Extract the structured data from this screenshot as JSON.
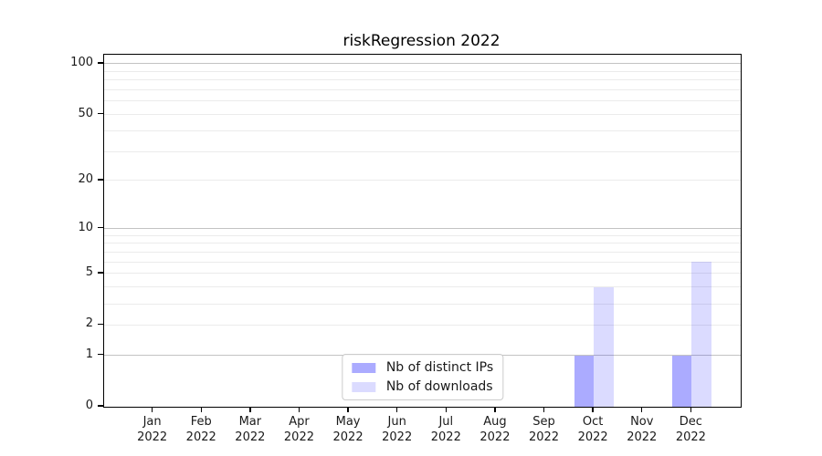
{
  "chart_data": {
    "type": "bar",
    "title": "riskRegression 2022",
    "categories": [
      "Jan",
      "Feb",
      "Mar",
      "Apr",
      "May",
      "Jun",
      "Jul",
      "Aug",
      "Sep",
      "Oct",
      "Nov",
      "Dec"
    ],
    "x_tick_line2": "2022",
    "series": [
      {
        "name": "Nb of distinct IPs",
        "color": "rgba(0,0,255,0.33)",
        "values": [
          0,
          0,
          0,
          0,
          0,
          0,
          0,
          0,
          0,
          1,
          0,
          1
        ]
      },
      {
        "name": "Nb of downloads",
        "color": "rgba(0,0,255,0.14)",
        "values": [
          0,
          0,
          0,
          0,
          0,
          0,
          0,
          0,
          0,
          4,
          0,
          6
        ]
      }
    ],
    "yscale": "log1p",
    "ylim": [
      0,
      113
    ],
    "yticks": [
      0,
      1,
      2,
      5,
      10,
      20,
      50,
      100
    ],
    "major_gridlines": [
      1,
      10,
      100
    ],
    "minor_gridlines": [
      2,
      3,
      4,
      5,
      6,
      7,
      8,
      9,
      20,
      30,
      40,
      50,
      60,
      70,
      80,
      90
    ],
    "grid": true,
    "legend_position": "lower center",
    "colors": {
      "major_grid": "#c3c3c3",
      "minor_grid": "#ebebeb",
      "axis": "#000000",
      "text": "#1a1a1a",
      "background": "#ffffff"
    }
  }
}
